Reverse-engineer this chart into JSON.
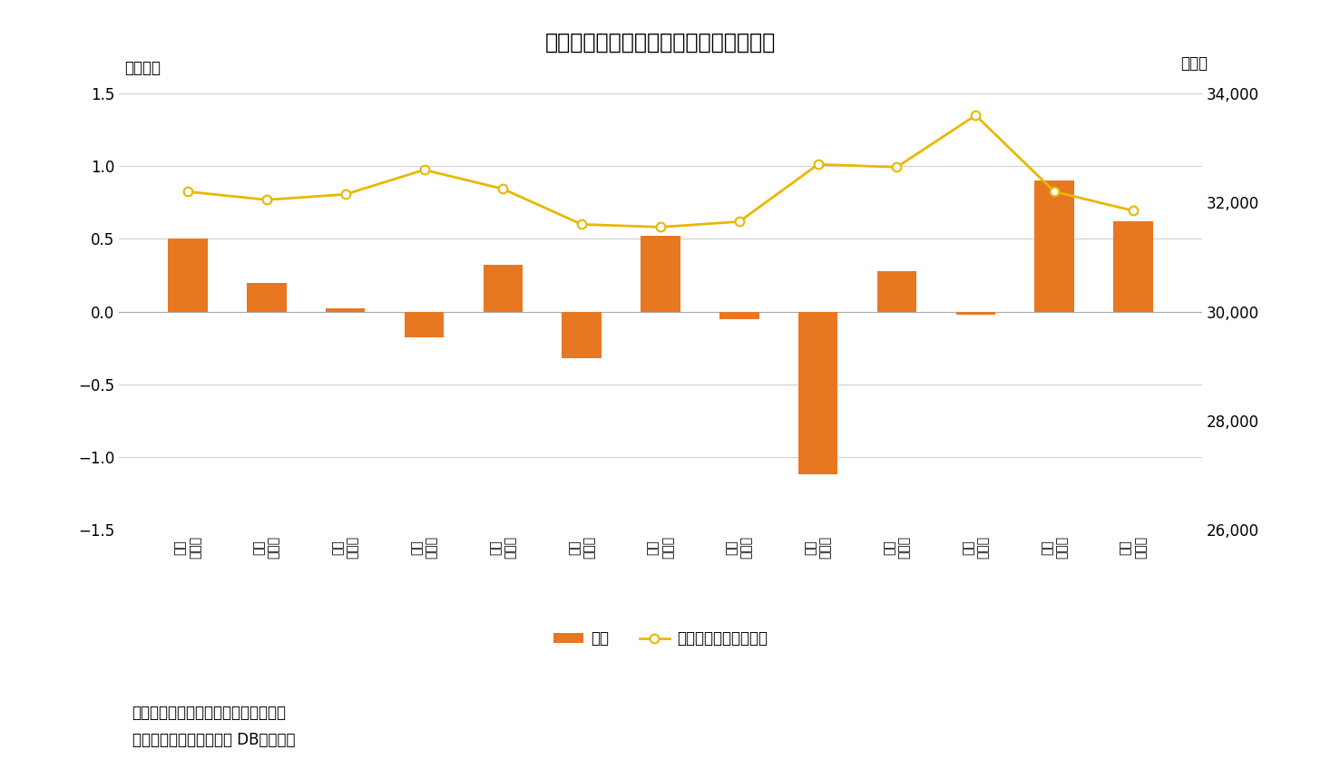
{
  "title": "図表３　個人は特に９月下旬に買い越し",
  "categories": [
    "７月\n第１週",
    "７月\n第２週",
    "７月\n第３週",
    "７月\n第４週",
    "８月\n第１週",
    "８月\n第２週",
    "８月\n第３週",
    "８月\n第４週",
    "８月\n第５週",
    "９月\n第１週",
    "９月\n第２週",
    "９月\n第３週",
    "９月\n第４週"
  ],
  "bar_values": [
    0.5,
    0.2,
    0.02,
    -0.18,
    0.32,
    -0.32,
    0.52,
    -0.05,
    -1.12,
    0.28,
    -0.02,
    0.9,
    0.62
  ],
  "line_values": [
    32200,
    32050,
    32150,
    32600,
    32250,
    31600,
    31550,
    31650,
    32700,
    32650,
    33600,
    32200,
    31850
  ],
  "bar_color": "#E87722",
  "line_color": "#E8B800",
  "line_marker": "o",
  "ylabel_left": "〈兆円〉",
  "ylabel_right": "〈円〉",
  "ylim_left": [
    -1.5,
    1.5
  ],
  "ylim_right": [
    26000,
    34000
  ],
  "yticks_left": [
    -1.5,
    -1.0,
    -0.5,
    0.0,
    0.5,
    1.0,
    1.5
  ],
  "yticks_right": [
    26000,
    28000,
    30000,
    32000,
    34000
  ],
  "legend_bar": "個人",
  "legend_line": "日経平均株価（右軸）",
  "note1": "（注）個人の現物と先物の合計、週次",
  "note2": "（資料）ニッセイ基礎研 DBから作成",
  "background_color": "#ffffff",
  "grid_color": "#d0d0d0"
}
